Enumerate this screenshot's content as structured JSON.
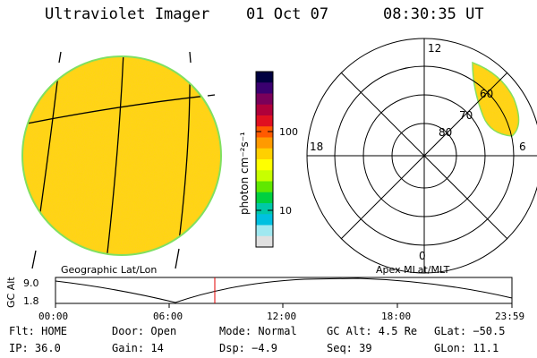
{
  "header": {
    "instrument": "Ultraviolet Imager",
    "date": "01 Oct 07",
    "time": "08:30:35 UT"
  },
  "colorbar": {
    "unit_label": "photon cm⁻²s⁻¹",
    "ticks": [
      "100",
      "10"
    ],
    "colors": [
      "#000040",
      "#3a0070",
      "#7a005a",
      "#b0003a",
      "#e01020",
      "#ff5a00",
      "#ff9a00",
      "#ffd000",
      "#ffff00",
      "#c8ff00",
      "#60e800",
      "#00d040",
      "#00c8a8",
      "#00c0e0",
      "#a0e8f0",
      "#e0e0e0"
    ]
  },
  "geo_panel": {
    "title": "Geographic Lat/Lon",
    "disk_color": "#ffd21a",
    "rim_color": "#80e060"
  },
  "polar_panel": {
    "title": "Apex MLat/MLT",
    "mlt_labels": {
      "top": "12",
      "left": "18",
      "right": "6",
      "bottom": "0"
    },
    "lat_labels": [
      "60",
      "70",
      "80"
    ],
    "aurora_color": "#ffd21a"
  },
  "altitude_plot": {
    "axis_label": "GC Alt",
    "y_ticks": [
      "9.0",
      "1.8"
    ],
    "x_ticks": [
      "00:00",
      "06:00",
      "12:00",
      "18:00",
      "23:59"
    ],
    "current_time_color": "#e00000"
  },
  "status": {
    "flt": "Flt: HOME",
    "door": "Door: Open",
    "mode": "Mode: Normal",
    "gc_alt": "GC Alt: 4.5 Re",
    "glat": "GLat: −50.5",
    "ip": "IP: 36.0",
    "gain": "Gain: 14",
    "dsp": "Dsp:   −4.9",
    "seq": "Seq: 39",
    "glon": "GLon:  11.1"
  }
}
